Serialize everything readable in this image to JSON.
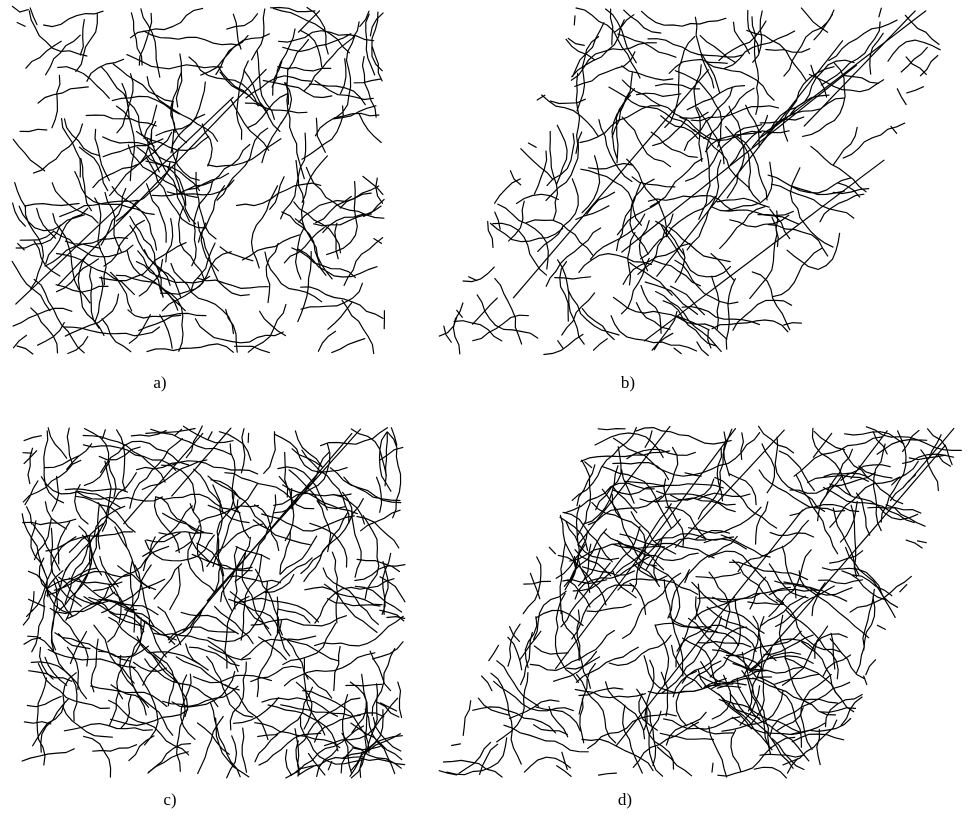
{
  "panels": [
    {
      "label": "a)"
    },
    {
      "label": "b)"
    },
    {
      "label": "c)"
    },
    {
      "label": "d)"
    }
  ]
}
